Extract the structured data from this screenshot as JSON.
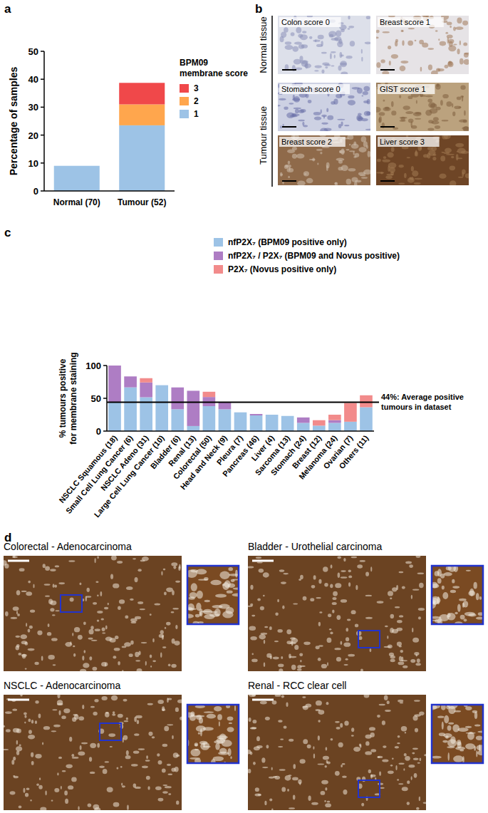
{
  "panel_letters": [
    "a",
    "b",
    "c",
    "d"
  ],
  "chart_data": [
    {
      "type": "bar",
      "stacked": true,
      "y_label": "Percentage of samples",
      "legend_title": [
        "BPM09",
        "membrane score"
      ],
      "categories": [
        "Normal (70)",
        "Tumour (52)"
      ],
      "ylim": [
        0,
        50
      ],
      "yticks": [
        0,
        10,
        20,
        30,
        40,
        50
      ],
      "series": [
        {
          "name": "1",
          "color": "#9dc3e6",
          "values": [
            9,
            23.5
          ]
        },
        {
          "name": "2",
          "color": "#ffa64d",
          "values": [
            0,
            7.5
          ]
        },
        {
          "name": "3",
          "color": "#f0484a",
          "values": [
            0,
            7.7
          ]
        }
      ]
    },
    {
      "type": "bar",
      "stacked": true,
      "y_label": [
        "% tumours positive",
        "for membrane staining"
      ],
      "categories": [
        "NSCLC Squamous (18)",
        "Small Cell Lung Cancer (6)",
        "NSCLC Adeno (31)",
        "Large Cell Lung Cancer (10)",
        "Bladder (6)",
        "Renal (13)",
        "Colorectal (50)",
        "Head and Neck (9)",
        "Pleura (7)",
        "Pancreas (46)",
        "Liver (4)",
        "Sarcoma (13)",
        "Stomach (24)",
        "Breast (12)",
        "Melanoma (24)",
        "Ovarian (7)",
        "Others (11)"
      ],
      "ylim": [
        0,
        100
      ],
      "yticks": [
        0,
        50,
        100
      ],
      "series": [
        {
          "name": "nfP2X₇ (BPM09 positive only)",
          "color": "#9dc3e6",
          "values": [
            44.4,
            66.7,
            51.6,
            70,
            33.3,
            7.7,
            38,
            33.3,
            28.6,
            23.9,
            25,
            23.1,
            12.5,
            8.3,
            12.5,
            14.3,
            36.4
          ]
        },
        {
          "name": "nfP2X₇ / P2X₇ (BPM09 and Novus positive)",
          "color": "#ae7dc4",
          "values": [
            55.6,
            16.7,
            22.6,
            0,
            33.3,
            53.8,
            14,
            11.1,
            0,
            2.2,
            0,
            0,
            8.3,
            0,
            4.2,
            0,
            0
          ]
        },
        {
          "name": "P2X₇ (Novus positive only)",
          "color": "#f28b8b",
          "values": [
            0,
            0,
            6.5,
            0,
            0,
            0,
            8,
            0,
            0,
            0,
            0,
            0,
            0,
            8.3,
            8.3,
            28.6,
            18.2
          ]
        }
      ],
      "reference_line": {
        "value": 44,
        "label_lines": [
          "44%: Average positive",
          "tumours in dataset"
        ]
      }
    }
  ],
  "panel_b": {
    "group_labels": [
      "Normal tissue",
      "Tumour tissue"
    ],
    "captions": [
      [
        "Colon score 0",
        "Breast score 1"
      ],
      [
        "Stomach score 0",
        "GIST score 1",
        "Breast score 2",
        "Liver score 3"
      ]
    ]
  },
  "panel_d": {
    "captions": [
      "Colorectal - Adenocarcinoma",
      "Bladder - Urothelial carcinoma",
      "NSCLC - Adenocarcinoma",
      "Renal - RCC clear cell"
    ]
  }
}
